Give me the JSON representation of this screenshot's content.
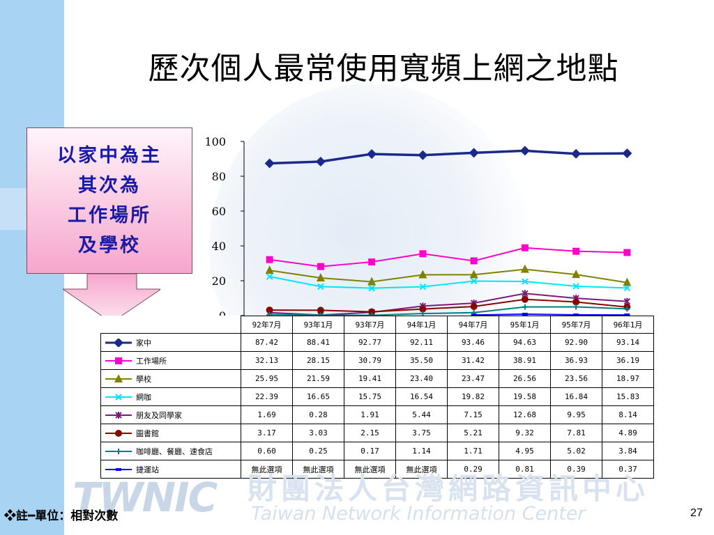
{
  "slide": {
    "title": "歷次個人最常使用寬頻上網之地點",
    "callout": [
      "以家中為主",
      "其次為",
      "工作場所",
      "及學校"
    ],
    "footnote": "❖註━單位：相對次數",
    "page_number": "27",
    "watermark": {
      "logo": "TWNIC",
      "org_cn": "財團法人台灣網路資訊中心",
      "org_en": "Taiwan Network Information Center"
    }
  },
  "chart_data": {
    "type": "line",
    "categories": [
      "92年7月",
      "93年1月",
      "93年7月",
      "94年1月",
      "94年7月",
      "95年1月",
      "95年7月",
      "96年1月"
    ],
    "ylim": [
      0,
      100
    ],
    "yticks": [
      0,
      20,
      40,
      60,
      80,
      100
    ],
    "na_text": "無此選項",
    "series": [
      {
        "name": "家中",
        "color": "#1a2a8c",
        "marker": "diamond",
        "values": [
          87.42,
          88.41,
          92.77,
          92.11,
          93.46,
          94.63,
          92.9,
          93.14
        ],
        "display": [
          "87.42",
          "88.41",
          "92.77",
          "92.11",
          "93.46",
          "94.63",
          "92.90",
          "93.14"
        ]
      },
      {
        "name": "工作場所",
        "color": "#ff00cc",
        "marker": "square",
        "values": [
          32.13,
          28.15,
          30.79,
          35.5,
          31.42,
          38.91,
          36.93,
          36.19
        ],
        "display": [
          "32.13",
          "28.15",
          "30.79",
          "35.50",
          "31.42",
          "38.91",
          "36.93",
          "36.19"
        ]
      },
      {
        "name": "學校",
        "color": "#808000",
        "marker": "triangle",
        "values": [
          25.95,
          21.59,
          19.41,
          23.4,
          23.47,
          26.56,
          23.56,
          18.97
        ],
        "display": [
          "25.95",
          "21.59",
          "19.41",
          "23.40",
          "23.47",
          "26.56",
          "23.56",
          "18.97"
        ]
      },
      {
        "name": "網咖",
        "color": "#00e5ff",
        "marker": "x",
        "values": [
          22.39,
          16.65,
          15.75,
          16.54,
          19.82,
          19.58,
          16.84,
          15.83
        ],
        "display": [
          "22.39",
          "16.65",
          "15.75",
          "16.54",
          "19.82",
          "19.58",
          "16.84",
          "15.83"
        ]
      },
      {
        "name": "朋友及同學家",
        "color": "#7a1a7a",
        "marker": "star",
        "values": [
          1.69,
          0.28,
          1.91,
          5.44,
          7.15,
          12.68,
          9.95,
          8.14
        ],
        "display": [
          "1.69",
          "0.28",
          "1.91",
          "5.44",
          "7.15",
          "12.68",
          "9.95",
          "8.14"
        ]
      },
      {
        "name": "圖書館",
        "color": "#8b0000",
        "marker": "circle",
        "values": [
          3.17,
          3.03,
          2.15,
          3.75,
          5.21,
          9.32,
          7.81,
          4.89
        ],
        "display": [
          "3.17",
          "3.03",
          "2.15",
          "3.75",
          "5.21",
          "9.32",
          "7.81",
          "4.89"
        ]
      },
      {
        "name": "咖啡廳、餐廳、速食店",
        "color": "#008080",
        "marker": "plus",
        "values": [
          0.6,
          0.25,
          0.17,
          1.14,
          1.71,
          4.95,
          5.02,
          3.84
        ],
        "display": [
          "0.60",
          "0.25",
          "0.17",
          "1.14",
          "1.71",
          "4.95",
          "5.02",
          "3.84"
        ]
      },
      {
        "name": "捷運站",
        "color": "#0000ff",
        "marker": "dash",
        "values": [
          null,
          null,
          null,
          null,
          0.29,
          0.81,
          0.39,
          0.37
        ],
        "display": [
          "無此選項",
          "無此選項",
          "無此選項",
          "無此選項",
          "0.29",
          "0.81",
          "0.39",
          "0.37"
        ]
      }
    ]
  }
}
